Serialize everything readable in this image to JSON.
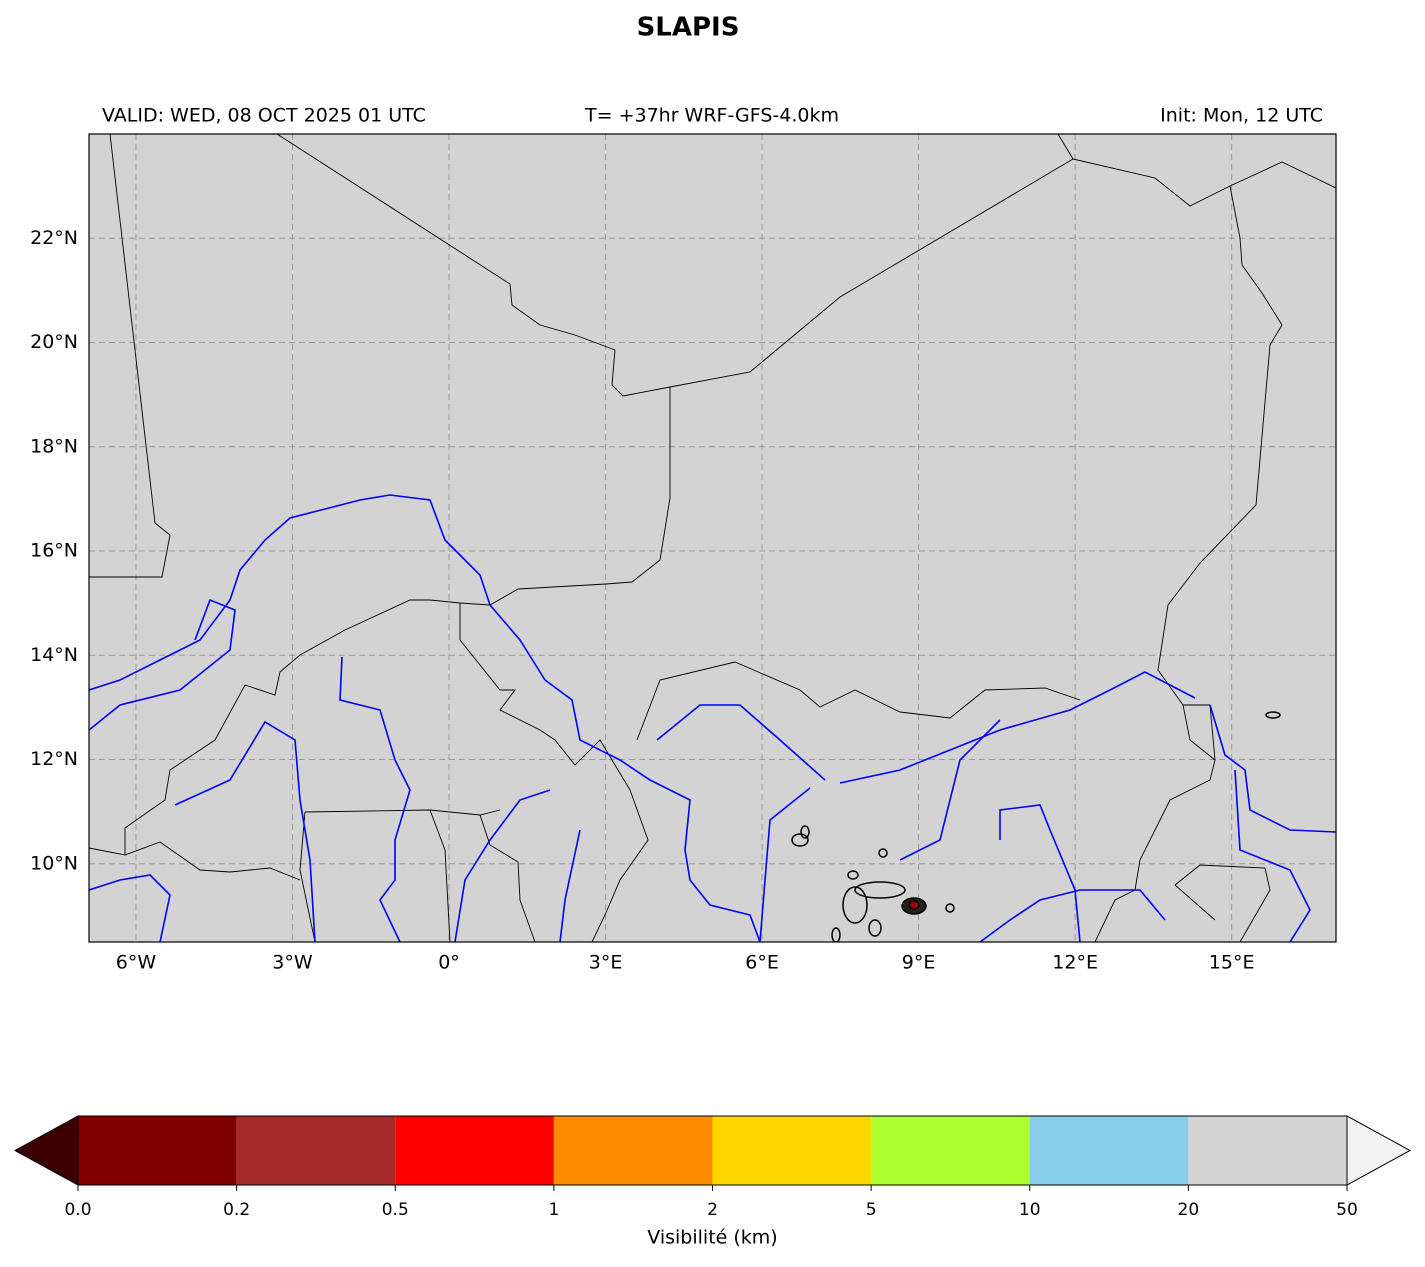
{
  "chart_data": {
    "type": "map",
    "title": "SLAPIS",
    "subtitle_left": "VALID: WED, 08 OCT 2025 01 UTC",
    "subtitle_center": "T= +37hr WRF-GFS-4.0km",
    "subtitle_right": "Init: Mon, 12 UTC",
    "xlim": [
      -6.9,
      17
    ],
    "ylim": [
      8.5,
      24
    ],
    "xticks": [
      {
        "value": -6,
        "label": "6°W"
      },
      {
        "value": -3,
        "label": "3°W"
      },
      {
        "value": 0,
        "label": "0°"
      },
      {
        "value": 3,
        "label": "3°E"
      },
      {
        "value": 6,
        "label": "6°E"
      },
      {
        "value": 9,
        "label": "9°E"
      },
      {
        "value": 12,
        "label": "12°E"
      },
      {
        "value": 15,
        "label": "15°E"
      }
    ],
    "yticks": [
      {
        "value": 10,
        "label": "10°N"
      },
      {
        "value": 12,
        "label": "12°N"
      },
      {
        "value": 14,
        "label": "14°N"
      },
      {
        "value": 16,
        "label": "16°N"
      },
      {
        "value": 18,
        "label": "18°N"
      },
      {
        "value": 20,
        "label": "20°N"
      },
      {
        "value": 22,
        "label": "22°N"
      }
    ],
    "grid": true,
    "background_color": "#d3d3d3",
    "colorbar": {
      "label": "Visibilité (km)",
      "bounds": [
        {
          "value": 0,
          "label": "0.0"
        },
        0.2,
        0.5,
        1,
        2,
        5,
        10,
        20,
        50
      ],
      "colors": [
        "#800000",
        "#a52a2a",
        "#ff0000",
        "#ff8c00",
        "#ffd700",
        "#adff2f",
        "#87ceeb",
        "#d3d3d3"
      ],
      "under_color": "#3d0000",
      "over_color": "#f2f2f2"
    }
  }
}
